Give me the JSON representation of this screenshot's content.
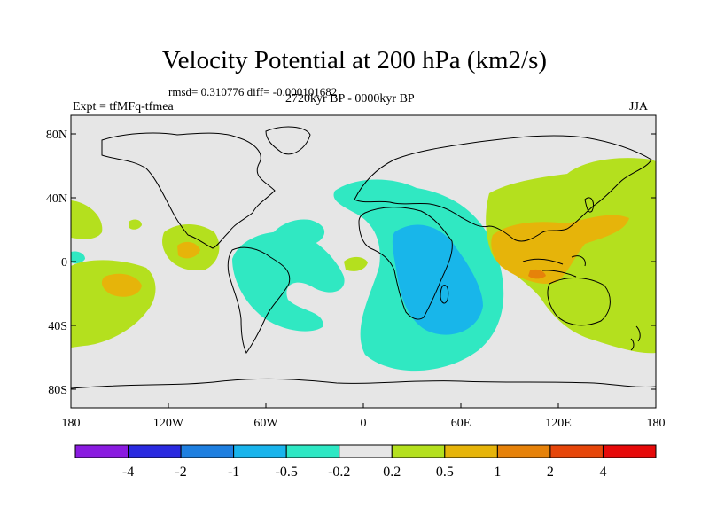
{
  "title": "Velocity Potential at 200 hPa (km2/s)",
  "stats": "rmsd= 0.310776 diff= -0.000101682",
  "experiment": "Expt = tfMFq-tfmea",
  "period": "2720kyr BP - 0000kyr BP",
  "season": "JJA",
  "lat_ticks": [
    "80N",
    "40N",
    "0",
    "40S",
    "80S"
  ],
  "lon_ticks": [
    "180",
    "120W",
    "60W",
    "0",
    "60E",
    "120E",
    "180"
  ],
  "colorbar": {
    "labels": [
      "-4",
      "-2",
      "-1",
      "-0.5",
      "-0.2",
      "0.2",
      "0.5",
      "1",
      "2",
      "4"
    ],
    "colors": [
      "#8a1be0",
      "#2a2ae0",
      "#1e7fe0",
      "#19b4ec",
      "#2ee8c4",
      "#e6e6e6",
      "#b4e01e",
      "#e6b40a",
      "#e6820a",
      "#e6460a",
      "#e60a0a"
    ]
  },
  "field_colors": {
    "background": "#e6e6e6",
    "neg_02_05": "#30e8c2",
    "neg_05_1": "#18b6ea",
    "pos_02_05": "#b4e01e",
    "pos_05_1": "#e6b40a",
    "pos_1_2": "#e6820a"
  }
}
